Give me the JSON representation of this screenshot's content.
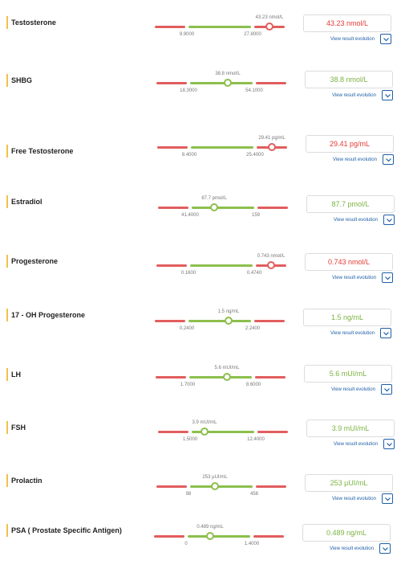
{
  "link_label": "View result evolution",
  "colors": {
    "in_range": "#8cbf4d",
    "out_of_range": "#e25d5d",
    "link": "#1e5fa8",
    "name_accent": "#f2c14a"
  },
  "tests": [
    {
      "name": "Testosterone",
      "value_label": "43.23 nmol/L",
      "result": "43.23 nmol/L",
      "low_label": "9.9000",
      "high_label": "27.8000",
      "position_pct": 88,
      "status": "high"
    },
    {
      "name": "SHBG",
      "value_label": "38.8 nmol/L",
      "result": "38.8 nmol/L",
      "low_label": "18.3000",
      "high_label": "54.1000",
      "position_pct": 55,
      "status": "normal"
    },
    {
      "name": "Free Testosterone",
      "value_label": "29.41 pg/mL",
      "result": "29.41 pg/mL",
      "low_label": "8.4000",
      "high_label": "25.4000",
      "position_pct": 88,
      "status": "high"
    },
    {
      "name": "Estradiol",
      "value_label": "87.7 pmol/L",
      "result": "87.7 pmol/L",
      "low_label": "41.4000",
      "high_label": "159",
      "position_pct": 43,
      "status": "normal"
    },
    {
      "name": "Progesterone",
      "value_label": "0.743 nmol/L",
      "result": "0.743 nmol/L",
      "low_label": "0.1600",
      "high_label": "0.4740",
      "position_pct": 88,
      "status": "high"
    },
    {
      "name": "17 - OH Progesterone",
      "value_label": "1.5 ng/mL",
      "result": "1.5 ng/mL",
      "low_label": "0.2400",
      "high_label": "2.2400",
      "position_pct": 57,
      "status": "normal"
    },
    {
      "name": "LH",
      "value_label": "5.6 mUI/mL",
      "result": "5.6 mUI/mL",
      "low_label": "1.7000",
      "high_label": "8.6000",
      "position_pct": 55,
      "status": "normal"
    },
    {
      "name": "FSH",
      "value_label": "3.9 mUI/mL",
      "result": "3.9 mUI/mL",
      "low_label": "1.5000",
      "high_label": "12.4000",
      "position_pct": 36,
      "status": "normal"
    },
    {
      "name": "Prolactin",
      "value_label": "253 µUI/mL",
      "result": "253 µUI/mL",
      "low_label": "98",
      "high_label": "456",
      "position_pct": 45,
      "status": "normal"
    },
    {
      "name": "PSA ( Prostate Specific Antigen)",
      "value_label": "0.489 ng/mL",
      "result": "0.489 ng/mL",
      "low_label": "0",
      "high_label": "1.4000",
      "position_pct": 43,
      "status": "normal"
    }
  ]
}
